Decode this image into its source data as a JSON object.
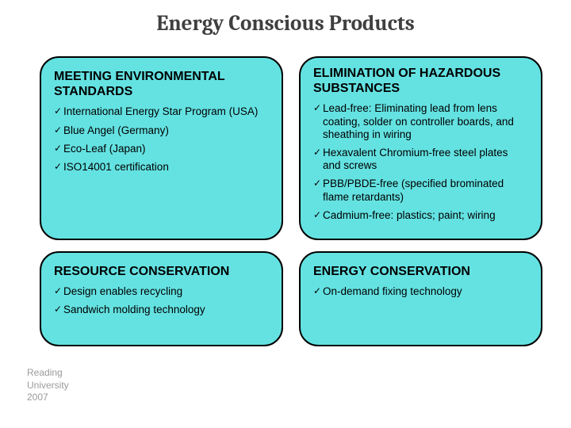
{
  "title": "Energy Conscious Products",
  "cards": {
    "tl": {
      "heading": "MEETING ENVIRONMENTAL STANDARDS",
      "items": [
        "International Energy Star Program (USA)",
        "Blue Angel (Germany)",
        "Eco-Leaf (Japan)",
        "ISO14001 certification"
      ]
    },
    "tr": {
      "heading": "ELIMINATION OF HAZARDOUS SUBSTANCES",
      "items": [
        "Lead-free: Eliminating lead from lens coating, solder on controller boards, and sheathing in wiring",
        "Hexavalent Chromium-free steel plates and screws",
        "PBB/PBDE-free (specified brominated flame retardants)",
        "Cadmium-free: plastics; paint; wiring"
      ]
    },
    "bl": {
      "heading": "RESOURCE CONSERVATION",
      "items": [
        "Design enables recycling",
        "Sandwich molding technology"
      ]
    },
    "br": {
      "heading": "ENERGY CONSERVATION",
      "items": [
        "On-demand fixing technology"
      ]
    }
  },
  "footer": {
    "line1": "Reading",
    "line2": "University",
    "line3": "2007"
  },
  "colors": {
    "card_bg": "#64e2e2",
    "card_border": "#000000",
    "title_color": "#3f3f3f",
    "footer_color": "#9a9a9a",
    "page_bg": "#ffffff"
  }
}
